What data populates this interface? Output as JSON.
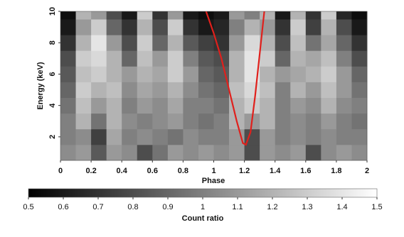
{
  "chart_data": {
    "type": "heatmap",
    "xlabel": "Phase",
    "ylabel": "Energy (keV)",
    "colorbar_label": "Count ratio",
    "x_bins": [
      0,
      0.1,
      0.2,
      0.3,
      0.4,
      0.5,
      0.6,
      0.7,
      0.8,
      0.9,
      1.0,
      1.1,
      1.2,
      1.3,
      1.4,
      1.5,
      1.6,
      1.7,
      1.8,
      1.9,
      2.0
    ],
    "y_bins": [
      0.5,
      1.5,
      2.5,
      3.5,
      4.5,
      5.5,
      6.5,
      7.5,
      8.5,
      9.5,
      10
    ],
    "z": [
      [
        1.05,
        1.1,
        0.85,
        1.1,
        1.05,
        0.8,
        0.95,
        1.1,
        1.05,
        1.1,
        1.05,
        1.1,
        0.8,
        1.1,
        1.05,
        1.1,
        0.8,
        1.05,
        1.1,
        1.05
      ],
      [
        1.0,
        1.05,
        0.75,
        1.15,
        1.0,
        1.05,
        1.0,
        0.95,
        1.05,
        1.0,
        1.0,
        1.1,
        0.8,
        1.1,
        1.0,
        1.05,
        1.0,
        1.05,
        1.0,
        1.0
      ],
      [
        1.0,
        1.2,
        0.95,
        1.2,
        1.05,
        1.0,
        1.05,
        1.1,
        1.0,
        0.95,
        1.0,
        1.2,
        1.1,
        1.2,
        1.0,
        1.05,
        1.0,
        1.1,
        1.0,
        0.95
      ],
      [
        0.95,
        1.25,
        1.1,
        1.2,
        1.0,
        1.1,
        1.05,
        1.15,
        1.0,
        1.0,
        0.95,
        1.2,
        1.3,
        1.2,
        1.0,
        1.1,
        1.05,
        1.2,
        1.05,
        1.0
      ],
      [
        0.9,
        1.3,
        1.2,
        1.25,
        1.05,
        1.15,
        1.1,
        1.2,
        1.05,
        0.95,
        0.9,
        1.25,
        1.35,
        1.25,
        1.0,
        1.2,
        1.1,
        1.25,
        1.1,
        0.95
      ],
      [
        0.85,
        1.25,
        1.3,
        1.2,
        1.1,
        1.2,
        1.15,
        1.3,
        1.1,
        0.9,
        0.85,
        1.2,
        1.4,
        1.2,
        1.1,
        1.15,
        1.2,
        1.3,
        1.1,
        0.9
      ],
      [
        0.8,
        1.3,
        1.35,
        1.2,
        0.9,
        1.25,
        1.1,
        1.3,
        1.0,
        0.85,
        0.8,
        1.2,
        1.4,
        1.3,
        0.9,
        1.2,
        1.15,
        1.25,
        1.0,
        0.8
      ],
      [
        0.7,
        1.2,
        1.4,
        1.1,
        0.8,
        1.3,
        0.9,
        1.2,
        0.85,
        0.75,
        0.7,
        1.1,
        1.35,
        1.2,
        0.8,
        1.25,
        0.95,
        1.15,
        0.9,
        0.7
      ],
      [
        0.6,
        1.1,
        1.3,
        0.9,
        0.7,
        1.2,
        0.8,
        1.3,
        0.7,
        0.6,
        0.65,
        1.0,
        1.2,
        1.1,
        0.7,
        1.3,
        0.75,
        1.2,
        0.8,
        0.6
      ],
      [
        0.55,
        1.2,
        1.1,
        0.8,
        0.6,
        1.3,
        0.7,
        1.1,
        0.6,
        0.55,
        0.6,
        1.1,
        1.0,
        1.2,
        0.6,
        1.2,
        0.7,
        1.3,
        0.65,
        0.55
      ]
    ],
    "xlim": [
      0,
      2
    ],
    "ylim": [
      0.5,
      10
    ],
    "xticks": [
      0,
      0.2,
      0.4,
      0.6,
      0.8,
      1,
      1.2,
      1.4,
      1.6,
      1.8,
      2
    ],
    "yticks": [
      2,
      4,
      6,
      8,
      10
    ],
    "zlim": [
      0.5,
      1.5
    ],
    "zticks": [
      0.5,
      0.6,
      0.7,
      0.8,
      0.9,
      1,
      1.1,
      1.2,
      1.3,
      1.4,
      1.5
    ],
    "colormap": [
      "#000000",
      "#ffffff"
    ],
    "curve": {
      "color": "#e0201c",
      "x": [
        0.95,
        1.0,
        1.05,
        1.1,
        1.15,
        1.19,
        1.21,
        1.24,
        1.27,
        1.3,
        1.33
      ],
      "y": [
        10,
        8.6,
        7.0,
        5.0,
        3.0,
        1.6,
        1.5,
        2.3,
        4.6,
        7.3,
        10
      ]
    }
  }
}
